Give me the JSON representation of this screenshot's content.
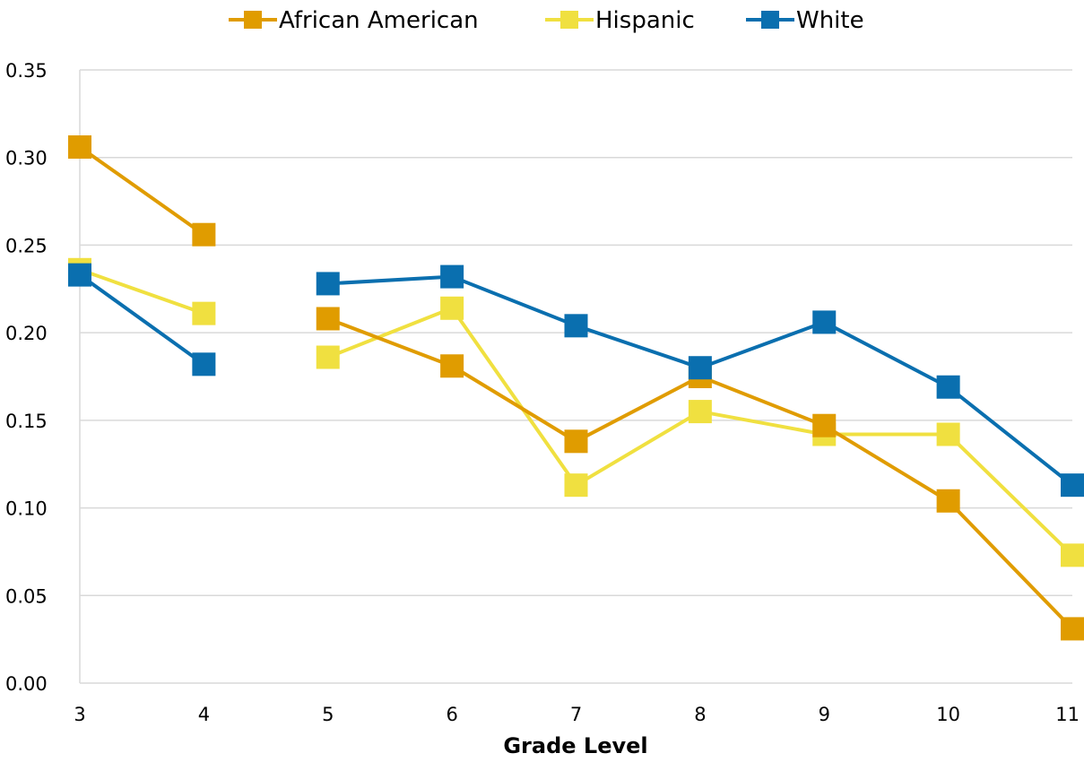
{
  "chart_data": {
    "type": "line",
    "title": "",
    "xlabel": "Grade Level",
    "ylabel": "",
    "categories": [
      "3",
      "4",
      "5",
      "6",
      "7",
      "8",
      "9",
      "10",
      "11"
    ],
    "ylim": [
      0,
      0.35
    ],
    "yticks": [
      "0.00",
      "0.05",
      "0.10",
      "0.15",
      "0.20",
      "0.25",
      "0.30",
      "0.35"
    ],
    "grid": true,
    "legend_position": "top-center",
    "series": [
      {
        "name": "African American",
        "color": "#E09C00",
        "marker": "square",
        "values": [
          0.306,
          0.256,
          0.208,
          0.181,
          0.138,
          0.175,
          0.147,
          0.104,
          0.031
        ]
      },
      {
        "name": "Hispanic",
        "color": "#F0E040",
        "marker": "square",
        "values": [
          0.236,
          0.211,
          0.186,
          0.214,
          0.113,
          0.155,
          0.142,
          0.142,
          0.073
        ]
      },
      {
        "name": "White",
        "color": "#0A6FAF",
        "marker": "square",
        "values": [
          0.233,
          0.182,
          null,
          0.232,
          0.204,
          0.18,
          0.206,
          0.169,
          0.113
        ]
      }
    ],
    "extra_points": [
      {
        "series": "White",
        "category": "5",
        "value": 0.228,
        "connected_to_next": true
      }
    ]
  }
}
